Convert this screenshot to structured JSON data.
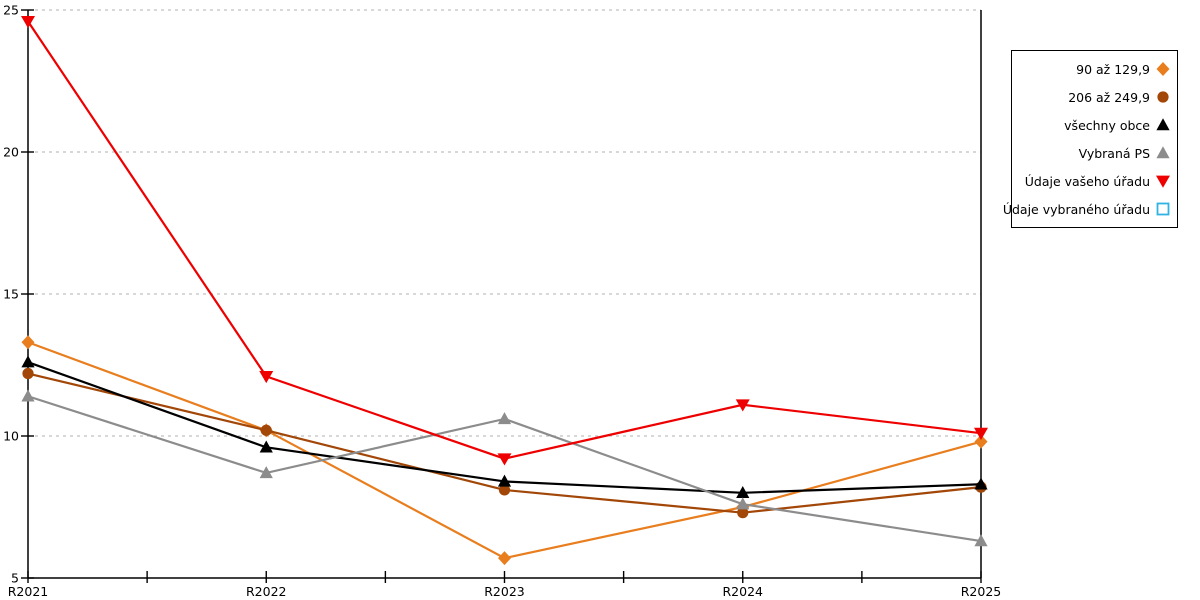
{
  "chart_data": {
    "type": "line",
    "title": "",
    "xlabel": "",
    "ylabel": "",
    "categories": [
      "R2021",
      "R2022",
      "R2023",
      "R2024",
      "R2025"
    ],
    "series": [
      {
        "name": "90 až 129,9",
        "color": "#E87E1E",
        "marker": "diamond",
        "values": [
          13.3,
          10.2,
          5.7,
          7.5,
          9.8
        ]
      },
      {
        "name": "206 až 249,9",
        "color": "#A24708",
        "marker": "circle",
        "values": [
          12.2,
          10.2,
          8.1,
          7.3,
          8.2
        ]
      },
      {
        "name": "všechny obce",
        "color": "#000000",
        "marker": "triangle-up",
        "values": [
          12.6,
          9.6,
          8.4,
          8.0,
          8.3
        ]
      },
      {
        "name": "Vybraná PS",
        "color": "#8C8C8C",
        "marker": "triangle-up",
        "values": [
          11.4,
          8.7,
          10.6,
          7.6,
          6.3
        ]
      },
      {
        "name": "Údaje vašeho úřadu",
        "color": "#EE0000",
        "marker": "triangle-down",
        "values": [
          24.6,
          12.1,
          9.2,
          11.1,
          10.1
        ]
      },
      {
        "name": "Údaje vybraného úřadu",
        "color": "#2FB3E3",
        "marker": "square-open",
        "values": []
      }
    ],
    "ylim": [
      5,
      25
    ],
    "yticks": [
      5,
      10,
      15,
      20,
      25
    ],
    "grid": "horizontal-dashed",
    "legend_position": "right"
  },
  "colors": {
    "background": "#FFFFFF",
    "axis": "#000000",
    "gridline": "#C0C0C0",
    "legend_border": "#000000"
  }
}
